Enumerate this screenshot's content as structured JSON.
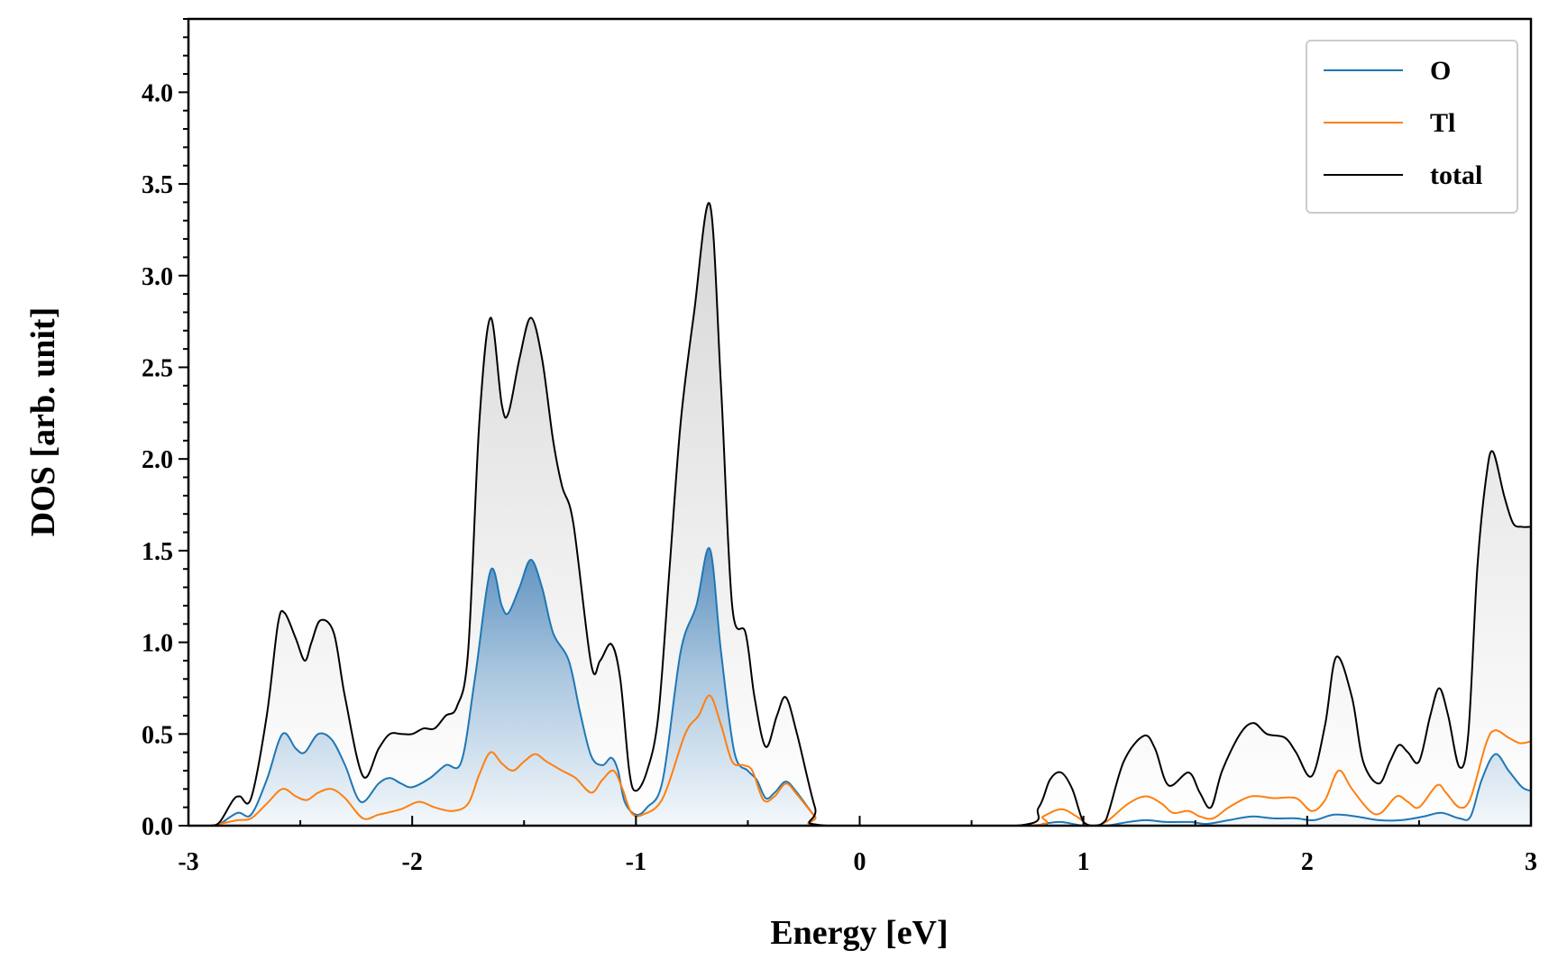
{
  "chart_data": {
    "type": "line",
    "title": "",
    "xlabel": "Energy [eV]",
    "ylabel": "DOS [arb. unit]",
    "xlim": [
      -3,
      3
    ],
    "ylim": [
      0,
      4.4
    ],
    "x_ticks": [
      -3,
      -2,
      -1,
      0,
      1,
      2,
      3
    ],
    "x_tick_labels": [
      "-3",
      "-2",
      "-1",
      "0",
      "1",
      "2",
      "3"
    ],
    "y_ticks": [
      0,
      0.5,
      1,
      1.5,
      2,
      2.5,
      3,
      3.5,
      4
    ],
    "y_tick_labels": [
      "0.0",
      "0.5",
      "1.0",
      "1.5",
      "2.0",
      "2.5",
      "3.0",
      "3.5",
      "4.0"
    ],
    "legend_position": "top-right",
    "grid": false,
    "fill": {
      "total": "grey vertical gradient",
      "O": "blue vertical gradient"
    },
    "series": [
      {
        "name": "O",
        "color": "#1f77b4",
        "points": [
          [
            -3.0,
            0
          ],
          [
            -2.9,
            0
          ],
          [
            -2.86,
            0.01
          ],
          [
            -2.78,
            0.07
          ],
          [
            -2.72,
            0.06
          ],
          [
            -2.65,
            0.25
          ],
          [
            -2.58,
            0.5
          ],
          [
            -2.52,
            0.42
          ],
          [
            -2.48,
            0.4
          ],
          [
            -2.42,
            0.5
          ],
          [
            -2.36,
            0.47
          ],
          [
            -2.3,
            0.33
          ],
          [
            -2.23,
            0.13
          ],
          [
            -2.15,
            0.23
          ],
          [
            -2.1,
            0.26
          ],
          [
            -2.05,
            0.23
          ],
          [
            -2.0,
            0.21
          ],
          [
            -1.92,
            0.26
          ],
          [
            -1.85,
            0.33
          ],
          [
            -1.78,
            0.35
          ],
          [
            -1.72,
            0.8
          ],
          [
            -1.65,
            1.39
          ],
          [
            -1.6,
            1.2
          ],
          [
            -1.57,
            1.16
          ],
          [
            -1.52,
            1.3
          ],
          [
            -1.47,
            1.45
          ],
          [
            -1.42,
            1.3
          ],
          [
            -1.37,
            1.05
          ],
          [
            -1.3,
            0.9
          ],
          [
            -1.25,
            0.62
          ],
          [
            -1.2,
            0.38
          ],
          [
            -1.15,
            0.33
          ],
          [
            -1.11,
            0.37
          ],
          [
            -1.08,
            0.3
          ],
          [
            -1.05,
            0.13
          ],
          [
            -1.0,
            0.06
          ],
          [
            -0.95,
            0.1
          ],
          [
            -0.88,
            0.25
          ],
          [
            -0.8,
            0.95
          ],
          [
            -0.73,
            1.2
          ],
          [
            -0.67,
            1.51
          ],
          [
            -0.62,
            0.95
          ],
          [
            -0.56,
            0.4
          ],
          [
            -0.5,
            0.3
          ],
          [
            -0.46,
            0.25
          ],
          [
            -0.42,
            0.15
          ],
          [
            -0.38,
            0.18
          ],
          [
            -0.33,
            0.24
          ],
          [
            -0.28,
            0.18
          ],
          [
            -0.2,
            0.05
          ],
          [
            -0.15,
            0
          ],
          [
            0.75,
            0
          ],
          [
            0.82,
            0.01
          ],
          [
            0.9,
            0.02
          ],
          [
            1.0,
            0
          ],
          [
            1.1,
            0
          ],
          [
            1.2,
            0.02
          ],
          [
            1.28,
            0.03
          ],
          [
            1.37,
            0.02
          ],
          [
            1.48,
            0.02
          ],
          [
            1.55,
            0.01
          ],
          [
            1.65,
            0.03
          ],
          [
            1.75,
            0.05
          ],
          [
            1.85,
            0.04
          ],
          [
            1.95,
            0.04
          ],
          [
            2.03,
            0.03
          ],
          [
            2.12,
            0.06
          ],
          [
            2.22,
            0.05
          ],
          [
            2.32,
            0.03
          ],
          [
            2.42,
            0.03
          ],
          [
            2.52,
            0.05
          ],
          [
            2.6,
            0.07
          ],
          [
            2.68,
            0.04
          ],
          [
            2.73,
            0.05
          ],
          [
            2.78,
            0.25
          ],
          [
            2.84,
            0.39
          ],
          [
            2.9,
            0.3
          ],
          [
            2.96,
            0.21
          ],
          [
            3.0,
            0.19
          ]
        ]
      },
      {
        "name": "Tl",
        "color": "#ff7f0e",
        "points": [
          [
            -3.0,
            0
          ],
          [
            -2.9,
            0
          ],
          [
            -2.86,
            0.01
          ],
          [
            -2.78,
            0.03
          ],
          [
            -2.72,
            0.04
          ],
          [
            -2.65,
            0.12
          ],
          [
            -2.58,
            0.2
          ],
          [
            -2.52,
            0.16
          ],
          [
            -2.47,
            0.14
          ],
          [
            -2.42,
            0.18
          ],
          [
            -2.36,
            0.2
          ],
          [
            -2.3,
            0.15
          ],
          [
            -2.22,
            0.04
          ],
          [
            -2.15,
            0.06
          ],
          [
            -2.05,
            0.09
          ],
          [
            -1.97,
            0.13
          ],
          [
            -1.9,
            0.1
          ],
          [
            -1.82,
            0.08
          ],
          [
            -1.75,
            0.12
          ],
          [
            -1.7,
            0.28
          ],
          [
            -1.65,
            0.4
          ],
          [
            -1.6,
            0.34
          ],
          [
            -1.55,
            0.3
          ],
          [
            -1.5,
            0.35
          ],
          [
            -1.45,
            0.39
          ],
          [
            -1.4,
            0.35
          ],
          [
            -1.33,
            0.3
          ],
          [
            -1.27,
            0.26
          ],
          [
            -1.2,
            0.18
          ],
          [
            -1.15,
            0.25
          ],
          [
            -1.1,
            0.3
          ],
          [
            -1.06,
            0.2
          ],
          [
            -1.02,
            0.07
          ],
          [
            -0.97,
            0.06
          ],
          [
            -0.88,
            0.15
          ],
          [
            -0.78,
            0.5
          ],
          [
            -0.72,
            0.6
          ],
          [
            -0.67,
            0.71
          ],
          [
            -0.62,
            0.55
          ],
          [
            -0.57,
            0.35
          ],
          [
            -0.52,
            0.33
          ],
          [
            -0.48,
            0.3
          ],
          [
            -0.43,
            0.14
          ],
          [
            -0.38,
            0.16
          ],
          [
            -0.33,
            0.23
          ],
          [
            -0.28,
            0.17
          ],
          [
            -0.2,
            0.05
          ],
          [
            -0.15,
            0
          ],
          [
            0.75,
            0
          ],
          [
            0.82,
            0.05
          ],
          [
            0.9,
            0.09
          ],
          [
            0.97,
            0.05
          ],
          [
            1.03,
            0
          ],
          [
            1.1,
            0.02
          ],
          [
            1.2,
            0.12
          ],
          [
            1.28,
            0.16
          ],
          [
            1.35,
            0.12
          ],
          [
            1.4,
            0.07
          ],
          [
            1.47,
            0.08
          ],
          [
            1.52,
            0.05
          ],
          [
            1.58,
            0.04
          ],
          [
            1.65,
            0.1
          ],
          [
            1.75,
            0.16
          ],
          [
            1.85,
            0.15
          ],
          [
            1.95,
            0.15
          ],
          [
            2.02,
            0.08
          ],
          [
            2.08,
            0.14
          ],
          [
            2.14,
            0.3
          ],
          [
            2.2,
            0.2
          ],
          [
            2.28,
            0.08
          ],
          [
            2.33,
            0.07
          ],
          [
            2.4,
            0.16
          ],
          [
            2.45,
            0.13
          ],
          [
            2.5,
            0.1
          ],
          [
            2.58,
            0.22
          ],
          [
            2.62,
            0.18
          ],
          [
            2.68,
            0.1
          ],
          [
            2.73,
            0.15
          ],
          [
            2.8,
            0.45
          ],
          [
            2.84,
            0.52
          ],
          [
            2.9,
            0.48
          ],
          [
            2.95,
            0.45
          ],
          [
            3.0,
            0.46
          ]
        ]
      },
      {
        "name": "total",
        "color": "#000000",
        "points": [
          [
            -3.0,
            0
          ],
          [
            -2.9,
            0
          ],
          [
            -2.86,
            0.02
          ],
          [
            -2.8,
            0.14
          ],
          [
            -2.77,
            0.16
          ],
          [
            -2.72,
            0.15
          ],
          [
            -2.65,
            0.6
          ],
          [
            -2.6,
            1.1
          ],
          [
            -2.57,
            1.16
          ],
          [
            -2.52,
            1.02
          ],
          [
            -2.48,
            0.9
          ],
          [
            -2.45,
            1.0
          ],
          [
            -2.41,
            1.12
          ],
          [
            -2.35,
            1.05
          ],
          [
            -2.3,
            0.7
          ],
          [
            -2.22,
            0.27
          ],
          [
            -2.15,
            0.42
          ],
          [
            -2.1,
            0.5
          ],
          [
            -2.05,
            0.5
          ],
          [
            -2.0,
            0.5
          ],
          [
            -1.95,
            0.53
          ],
          [
            -1.9,
            0.53
          ],
          [
            -1.85,
            0.6
          ],
          [
            -1.8,
            0.65
          ],
          [
            -1.75,
            0.95
          ],
          [
            -1.7,
            2.2
          ],
          [
            -1.65,
            2.77
          ],
          [
            -1.6,
            2.3
          ],
          [
            -1.57,
            2.25
          ],
          [
            -1.52,
            2.55
          ],
          [
            -1.47,
            2.77
          ],
          [
            -1.42,
            2.55
          ],
          [
            -1.37,
            2.1
          ],
          [
            -1.33,
            1.85
          ],
          [
            -1.28,
            1.65
          ],
          [
            -1.2,
            0.88
          ],
          [
            -1.16,
            0.9
          ],
          [
            -1.11,
            0.99
          ],
          [
            -1.07,
            0.8
          ],
          [
            -1.03,
            0.3
          ],
          [
            -1.0,
            0.19
          ],
          [
            -0.95,
            0.3
          ],
          [
            -0.9,
            0.6
          ],
          [
            -0.85,
            1.4
          ],
          [
            -0.8,
            2.2
          ],
          [
            -0.74,
            2.8
          ],
          [
            -0.67,
            3.39
          ],
          [
            -0.62,
            2.4
          ],
          [
            -0.57,
            1.2
          ],
          [
            -0.51,
            1.05
          ],
          [
            -0.47,
            0.7
          ],
          [
            -0.42,
            0.43
          ],
          [
            -0.37,
            0.6
          ],
          [
            -0.33,
            0.7
          ],
          [
            -0.28,
            0.5
          ],
          [
            -0.2,
            0.1
          ],
          [
            -0.15,
            0
          ],
          [
            0.7,
            0
          ],
          [
            0.8,
            0.1
          ],
          [
            0.85,
            0.25
          ],
          [
            0.9,
            0.29
          ],
          [
            0.95,
            0.2
          ],
          [
            1.0,
            0.02
          ],
          [
            1.05,
            0
          ],
          [
            1.1,
            0.03
          ],
          [
            1.18,
            0.35
          ],
          [
            1.27,
            0.49
          ],
          [
            1.32,
            0.42
          ],
          [
            1.38,
            0.22
          ],
          [
            1.47,
            0.29
          ],
          [
            1.52,
            0.18
          ],
          [
            1.57,
            0.1
          ],
          [
            1.62,
            0.3
          ],
          [
            1.7,
            0.5
          ],
          [
            1.76,
            0.56
          ],
          [
            1.82,
            0.5
          ],
          [
            1.9,
            0.48
          ],
          [
            1.95,
            0.4
          ],
          [
            2.02,
            0.27
          ],
          [
            2.08,
            0.55
          ],
          [
            2.13,
            0.92
          ],
          [
            2.2,
            0.7
          ],
          [
            2.25,
            0.35
          ],
          [
            2.32,
            0.23
          ],
          [
            2.37,
            0.35
          ],
          [
            2.41,
            0.44
          ],
          [
            2.45,
            0.4
          ],
          [
            2.5,
            0.35
          ],
          [
            2.55,
            0.6
          ],
          [
            2.59,
            0.75
          ],
          [
            2.63,
            0.6
          ],
          [
            2.68,
            0.32
          ],
          [
            2.72,
            0.5
          ],
          [
            2.76,
            1.4
          ],
          [
            2.8,
            1.9
          ],
          [
            2.83,
            2.04
          ],
          [
            2.88,
            1.8
          ],
          [
            2.92,
            1.65
          ],
          [
            2.96,
            1.63
          ],
          [
            3.0,
            1.63
          ]
        ]
      }
    ]
  }
}
